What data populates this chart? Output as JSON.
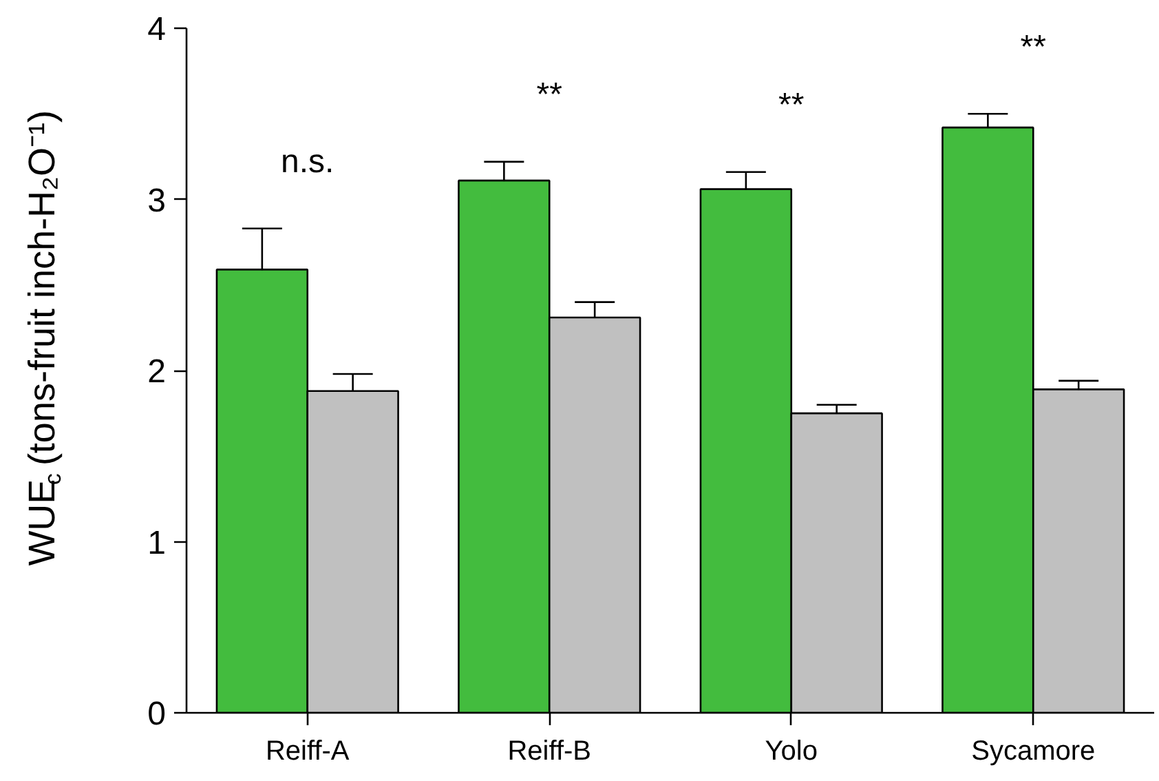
{
  "chart_data": {
    "type": "bar",
    "ylabel": "WUE$_{c}$ (tons-fruit inch-H₂O⁻¹)",
    "categories": [
      "Reiff-A",
      "Reiff-B",
      "Yolo",
      "Sycamore"
    ],
    "series": [
      {
        "color": "#43bc3e",
        "values": [
          2.59,
          3.11,
          3.06,
          3.42
        ],
        "errors": [
          [
            2.59,
            2.83
          ],
          [
            3.11,
            3.22
          ],
          [
            3.06,
            3.16
          ],
          [
            3.42,
            3.5
          ]
        ]
      },
      {
        "color": "#c0c0c0",
        "values": [
          1.88,
          2.31,
          1.75,
          1.89
        ],
        "errors": [
          [
            1.88,
            1.98
          ],
          [
            2.31,
            2.4
          ],
          [
            1.75,
            1.8
          ],
          [
            1.89,
            1.94
          ]
        ]
      }
    ],
    "ylim": [
      0,
      4
    ],
    "yticks": [
      0,
      1,
      2,
      3,
      4
    ],
    "grid": false,
    "annotations": [
      "n.s.",
      "**",
      "**",
      "**"
    ]
  }
}
